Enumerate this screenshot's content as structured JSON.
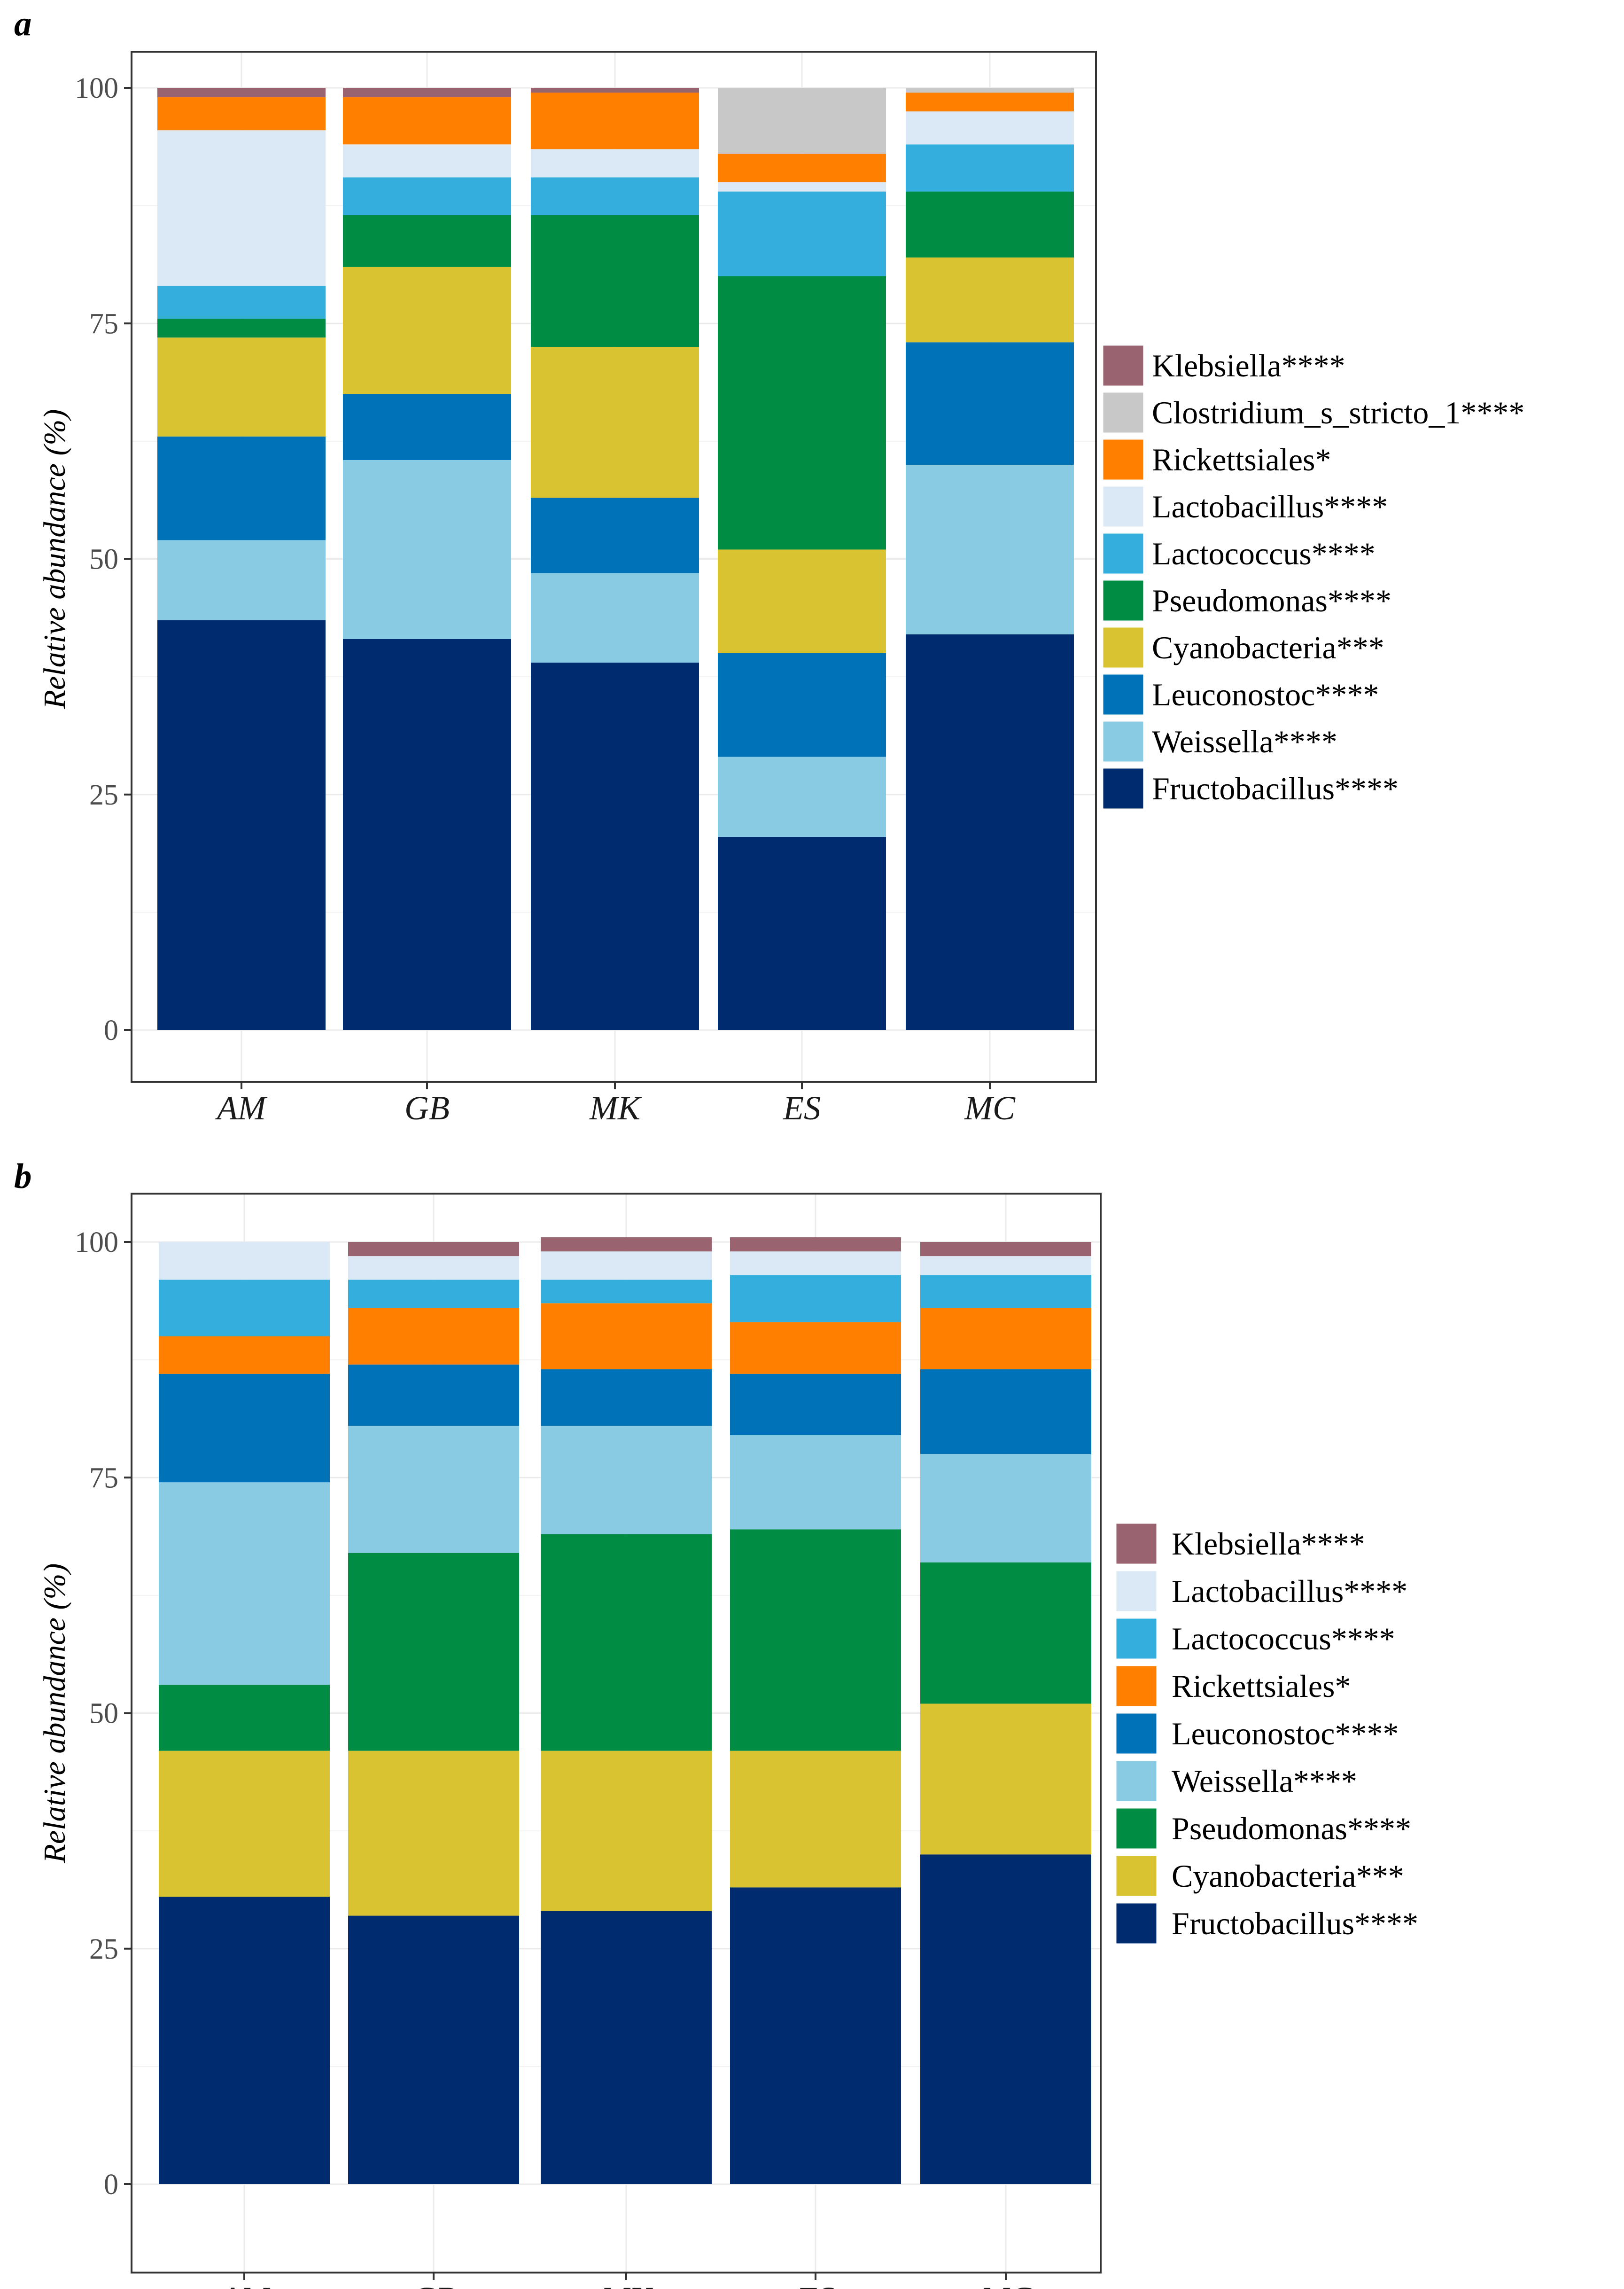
{
  "chart_data": [
    {
      "panel_label": "a",
      "type": "stacked-bar",
      "ylabel": "Relative abundance (%)",
      "ylim": [
        0,
        100
      ],
      "yticks": [
        "0",
        "25",
        "50",
        "75",
        "100"
      ],
      "categories": [
        "AM",
        "GB",
        "MK",
        "ES",
        "MC"
      ],
      "legend": [
        {
          "name": "Klebsiella****",
          "color": "#996470"
        },
        {
          "name": "Clostridium_s_stricto_1****",
          "color": "#c8c8c8"
        },
        {
          "name": "Rickettsiales*",
          "color": "#ff7f00"
        },
        {
          "name": "Lactobacillus****",
          "color": "#dbe9f6"
        },
        {
          "name": "Lactococcus****",
          "color": "#34aedc"
        },
        {
          "name": "Pseudomonas****",
          "color": "#008c42"
        },
        {
          "name": "Cyanobacteria***",
          "color": "#d9c330"
        },
        {
          "name": "Leuconostoc****",
          "color": "#0072b8"
        },
        {
          "name": "Weissella****",
          "color": "#89cbe3"
        },
        {
          "name": "Fructobacillus****",
          "color": "#002b6e"
        }
      ],
      "series": [
        {
          "name": "Fructobacillus****",
          "values": [
            43.5,
            41.5,
            39.0,
            20.5,
            42.0
          ]
        },
        {
          "name": "Weissella****",
          "values": [
            8.5,
            19.0,
            9.5,
            8.5,
            18.0
          ]
        },
        {
          "name": "Leuconostoc****",
          "values": [
            11.0,
            7.0,
            8.0,
            11.0,
            13.0
          ]
        },
        {
          "name": "Cyanobacteria***",
          "values": [
            10.5,
            13.5,
            16.0,
            11.0,
            9.0
          ]
        },
        {
          "name": "Pseudomonas****",
          "values": [
            2.0,
            5.5,
            14.0,
            29.0,
            7.0
          ]
        },
        {
          "name": "Lactococcus****",
          "values": [
            3.5,
            4.0,
            4.0,
            9.0,
            5.0
          ]
        },
        {
          "name": "Lactobacillus****",
          "values": [
            16.5,
            3.5,
            3.0,
            1.0,
            3.5
          ]
        },
        {
          "name": "Rickettsiales*",
          "values": [
            3.5,
            5.0,
            6.0,
            3.0,
            2.0
          ]
        },
        {
          "name": "Clostridium_s_stricto_1****",
          "values": [
            0.0,
            0.0,
            0.0,
            7.0,
            0.5
          ]
        },
        {
          "name": "Klebsiella****",
          "values": [
            1.0,
            1.0,
            0.5,
            0.0,
            0.0
          ]
        }
      ]
    },
    {
      "panel_label": "b",
      "type": "stacked-bar",
      "ylabel": "Relative abundance (%)",
      "ylim": [
        0,
        100
      ],
      "yticks": [
        "0",
        "25",
        "50",
        "75",
        "100"
      ],
      "categories": [
        "AM",
        "GB",
        "MK",
        "ES",
        "MC"
      ],
      "legend": [
        {
          "name": "Klebsiella****",
          "color": "#996470"
        },
        {
          "name": "Lactobacillus****",
          "color": "#dbe9f6"
        },
        {
          "name": "Lactococcus****",
          "color": "#34aedc"
        },
        {
          "name": "Rickettsiales*",
          "color": "#ff7f00"
        },
        {
          "name": "Leuconostoc****",
          "color": "#0072b8"
        },
        {
          "name": "Weissella****",
          "color": "#89cbe3"
        },
        {
          "name": "Pseudomonas****",
          "color": "#008c42"
        },
        {
          "name": "Cyanobacteria***",
          "color": "#d9c330"
        },
        {
          "name": "Fructobacillus****",
          "color": "#002b6e"
        }
      ],
      "series": [
        {
          "name": "Fructobacillus****",
          "values": [
            30.5,
            28.5,
            29.0,
            31.5,
            35.0
          ]
        },
        {
          "name": "Cyanobacteria***",
          "values": [
            15.5,
            17.5,
            17.0,
            14.5,
            16.0
          ]
        },
        {
          "name": "Pseudomonas****",
          "values": [
            7.0,
            21.0,
            23.0,
            23.5,
            15.0
          ]
        },
        {
          "name": "Weissella****",
          "values": [
            21.5,
            13.5,
            11.5,
            10.0,
            11.5
          ]
        },
        {
          "name": "Leuconostoc****",
          "values": [
            11.5,
            6.5,
            6.0,
            6.5,
            9.0
          ]
        },
        {
          "name": "Rickettsiales*",
          "values": [
            4.0,
            6.0,
            7.0,
            5.5,
            6.5
          ]
        },
        {
          "name": "Lactococcus****",
          "values": [
            6.0,
            3.0,
            2.5,
            5.0,
            3.5
          ]
        },
        {
          "name": "Lactobacillus****",
          "values": [
            4.0,
            2.5,
            3.0,
            2.5,
            2.0
          ]
        },
        {
          "name": "Klebsiella****",
          "values": [
            0.0,
            1.5,
            1.5,
            1.5,
            1.5
          ]
        }
      ]
    }
  ]
}
